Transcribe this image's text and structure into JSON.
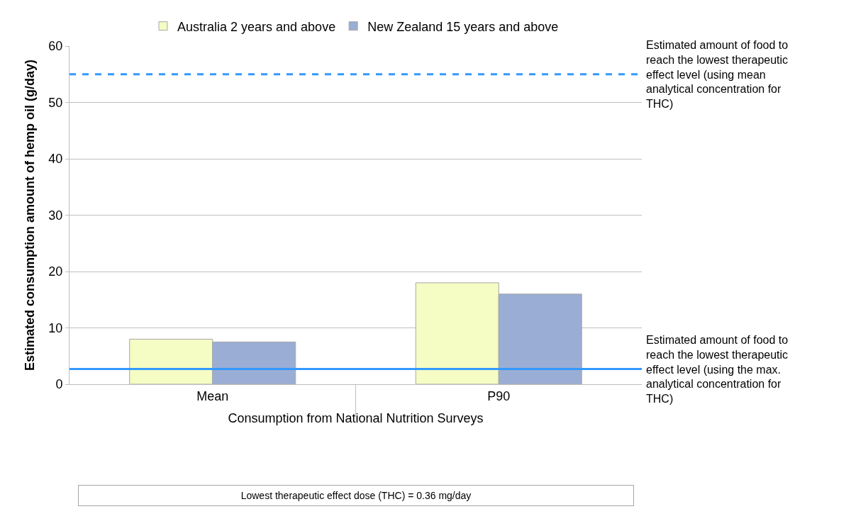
{
  "chart_data": {
    "type": "bar",
    "categories": [
      "Mean",
      "P90"
    ],
    "xlabel": "Consumption from National Nutrition Surveys",
    "ylabel": "Estimated consumption amount of hemp oil (g/day)",
    "series": [
      {
        "name": "Australia 2 years and above",
        "color": "#f5fcc4",
        "values": [
          8,
          18
        ]
      },
      {
        "name": "New Zealand 15 years and above",
        "color": "#9aaed5",
        "values": [
          7.5,
          16
        ]
      }
    ],
    "ylim": [
      0,
      60
    ],
    "yticks": [
      0,
      10,
      20,
      30,
      40,
      50,
      60
    ],
    "grid": "y",
    "legend": "top",
    "ref_lines": [
      {
        "axis": "y",
        "value": 55,
        "label": "Estimated amount of food to reach the lowest therapeutic effect level (using mean analytical concentration for THC)",
        "color": "#3399ff",
        "line_style": "dashed"
      },
      {
        "axis": "y",
        "value": 2.7,
        "label": "Estimated amount of food to reach the lowest therapeutic effect level (using the max. analytical concentration for THC)",
        "color": "#3399ff",
        "line_style": "solid"
      }
    ],
    "annotations": [
      "Lowest therapeutic effect dose (THC) = 0.36 mg/day"
    ]
  }
}
